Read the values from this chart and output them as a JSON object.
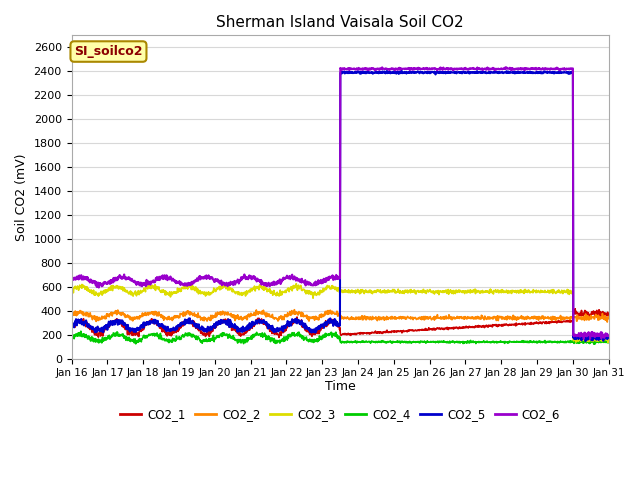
{
  "title": "Sherman Island Vaisala Soil CO2",
  "ylabel": "Soil CO2 (mV)",
  "xlabel": "Time",
  "annotation": "SI_soilco2",
  "xlim": [
    0,
    15
  ],
  "ylim": [
    0,
    2700
  ],
  "yticks": [
    0,
    200,
    400,
    600,
    800,
    1000,
    1200,
    1400,
    1600,
    1800,
    2000,
    2200,
    2400,
    2600
  ],
  "xtick_labels": [
    "Jan 16",
    "Jan 17",
    "Jan 18",
    "Jan 19",
    "Jan 20",
    "Jan 21",
    "Jan 22",
    "Jan 23",
    "Jan 24",
    "Jan 25",
    "Jan 26",
    "Jan 27",
    "Jan 28",
    "Jan 29",
    "Jan 30",
    "Jan 31"
  ],
  "series": {
    "CO2_1": {
      "color": "#cc0000",
      "lw": 1.2
    },
    "CO2_2": {
      "color": "#ff8800",
      "lw": 1.2
    },
    "CO2_3": {
      "color": "#dddd00",
      "lw": 1.2
    },
    "CO2_4": {
      "color": "#00cc00",
      "lw": 1.2
    },
    "CO2_5": {
      "color": "#0000cc",
      "lw": 1.5
    },
    "CO2_6": {
      "color": "#9900cc",
      "lw": 1.5
    }
  },
  "plot_bg": "#ffffff",
  "fig_bg": "#ffffff",
  "grid_color": "#d8d8d8",
  "title_fontsize": 11,
  "spike_start": 7.5,
  "spike_end": 14.0,
  "co2_1_base": 260,
  "co2_1_amp": 55,
  "co2_1_noise": 12,
  "co2_2_base": 360,
  "co2_2_amp": 25,
  "co2_2_noise": 10,
  "co2_3_base": 570,
  "co2_3_amp": 30,
  "co2_3_noise": 10,
  "co2_4_base": 175,
  "co2_4_amp": 28,
  "co2_4_noise": 10,
  "co2_5_base": 275,
  "co2_5_amp": 38,
  "co2_5_noise": 12,
  "co2_6_base": 650,
  "co2_6_amp": 30,
  "co2_6_noise": 10
}
